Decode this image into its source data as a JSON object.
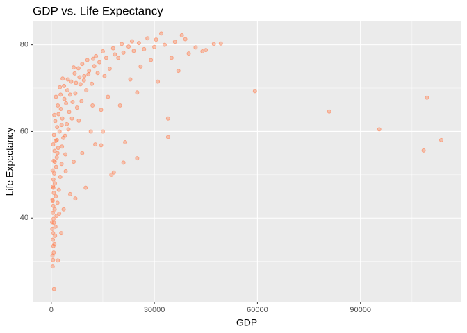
{
  "chart_data": {
    "type": "scatter",
    "title": "GDP vs. Life Expectancy",
    "x_label": "GDP",
    "y_label": "Life Expectancy",
    "color": "#FF7F50",
    "xlim": [
      -5423,
      119187
    ],
    "ylim": [
      20.65,
      85.55
    ],
    "xticks": [
      0,
      30000,
      60000,
      90000
    ],
    "yticks": [
      40,
      60,
      80
    ],
    "x_minor_ticks": [
      15000,
      45000,
      75000,
      105000
    ],
    "y_minor_ticks": [
      30,
      50,
      70
    ],
    "grid": true,
    "x": [
      800,
      400,
      500,
      350,
      700,
      600,
      900,
      450,
      1100,
      520,
      300,
      1200,
      750,
      650,
      1500,
      420,
      980,
      560,
      1800,
      330,
      1300,
      720,
      2200,
      480,
      1050,
      610,
      2600,
      850,
      380,
      1400,
      3000,
      690,
      1600,
      4100,
      950,
      2000,
      530,
      1250,
      3500,
      780,
      2400,
      1700,
      4500,
      1150,
      3200,
      880,
      5200,
      2800,
      1900,
      6200,
      3800,
      1350,
      7000,
      4700,
      2500,
      8500,
      5800,
      3300,
      9600,
      6800,
      11000,
      7900,
      12500,
      9000,
      14000,
      10500,
      16000,
      13000,
      18500,
      21000,
      24000,
      27000,
      30000,
      33000,
      36000,
      39000,
      42000,
      45000,
      47306,
      49357,
      32000,
      28000,
      25500,
      22500,
      19500,
      17000,
      15500,
      13500,
      11800,
      10200,
      8800,
      7500,
      6000,
      5000,
      4000,
      3100,
      12800,
      15000,
      14500,
      17500,
      18200,
      21000,
      21500,
      25000,
      34000,
      34000,
      31000,
      37000,
      25000,
      59265,
      80895,
      95458,
      108382,
      109348,
      113523,
      7000,
      5500,
      10000,
      6500,
      9000,
      11500,
      12000,
      14500,
      16500,
      20000,
      23000,
      26000,
      29000,
      35000,
      40000,
      44000,
      3600,
      2900,
      1900,
      4200,
      8000,
      9500,
      6500,
      4800,
      3700,
      2700,
      2100,
      1600,
      1000,
      600,
      250,
      400,
      2300,
      1800,
      3000,
      4300,
      5500,
      7200,
      8200,
      10800,
      12200,
      15000,
      18000,
      20500,
      23500,
      30500,
      38000
    ],
    "values": [
      23.6,
      28.8,
      30.3,
      31.3,
      32.0,
      33.5,
      34.0,
      35.0,
      35.9,
      36.5,
      37.5,
      38.0,
      38.9,
      39.8,
      40.5,
      41.2,
      42.0,
      42.8,
      43.5,
      44.2,
      45.0,
      45.8,
      46.5,
      47.3,
      48.0,
      48.9,
      49.5,
      50.3,
      51.0,
      51.8,
      52.5,
      53.2,
      54.0,
      54.7,
      55.5,
      56.2,
      57.0,
      57.8,
      58.5,
      59.2,
      60.0,
      61.0,
      61.7,
      62.4,
      63.0,
      63.8,
      64.5,
      65.2,
      66.0,
      66.8,
      67.5,
      68.0,
      68.8,
      69.5,
      70.2,
      70.9,
      71.5,
      72.2,
      72.8,
      73.4,
      74.0,
      74.6,
      75.1,
      75.6,
      76.0,
      76.5,
      77.0,
      77.4,
      77.8,
      78.2,
      78.6,
      79.0,
      79.5,
      80.0,
      80.7,
      81.3,
      79.4,
      78.8,
      80.2,
      80.3,
      82.6,
      81.5,
      80.4,
      79.6,
      77.0,
      74.5,
      72.8,
      73.5,
      71.0,
      69.5,
      67.0,
      65.5,
      63.0,
      60.5,
      59.0,
      56.5,
      57.0,
      60.0,
      56.8,
      50.0,
      50.5,
      52.8,
      57.5,
      53.8,
      63.0,
      58.7,
      71.5,
      74.0,
      69.0,
      69.3,
      64.6,
      60.5,
      55.6,
      67.8,
      58.0,
      44.5,
      45.5,
      47.0,
      53.0,
      55.0,
      60.0,
      66.0,
      65.0,
      68.0,
      66.0,
      72.0,
      75.0,
      76.5,
      77.0,
      78.0,
      78.5,
      42.0,
      36.5,
      30.2,
      50.8,
      62.5,
      71.8,
      74.8,
      72.0,
      70.5,
      68.5,
      64.0,
      58.0,
      53.0,
      47.0,
      39.0,
      44.0,
      41.0,
      55.0,
      61.5,
      66.5,
      68.5,
      71.2,
      72.5,
      73.2,
      76.8,
      78.5,
      79.2,
      80.2,
      80.8,
      81.2,
      82.2
    ]
  }
}
